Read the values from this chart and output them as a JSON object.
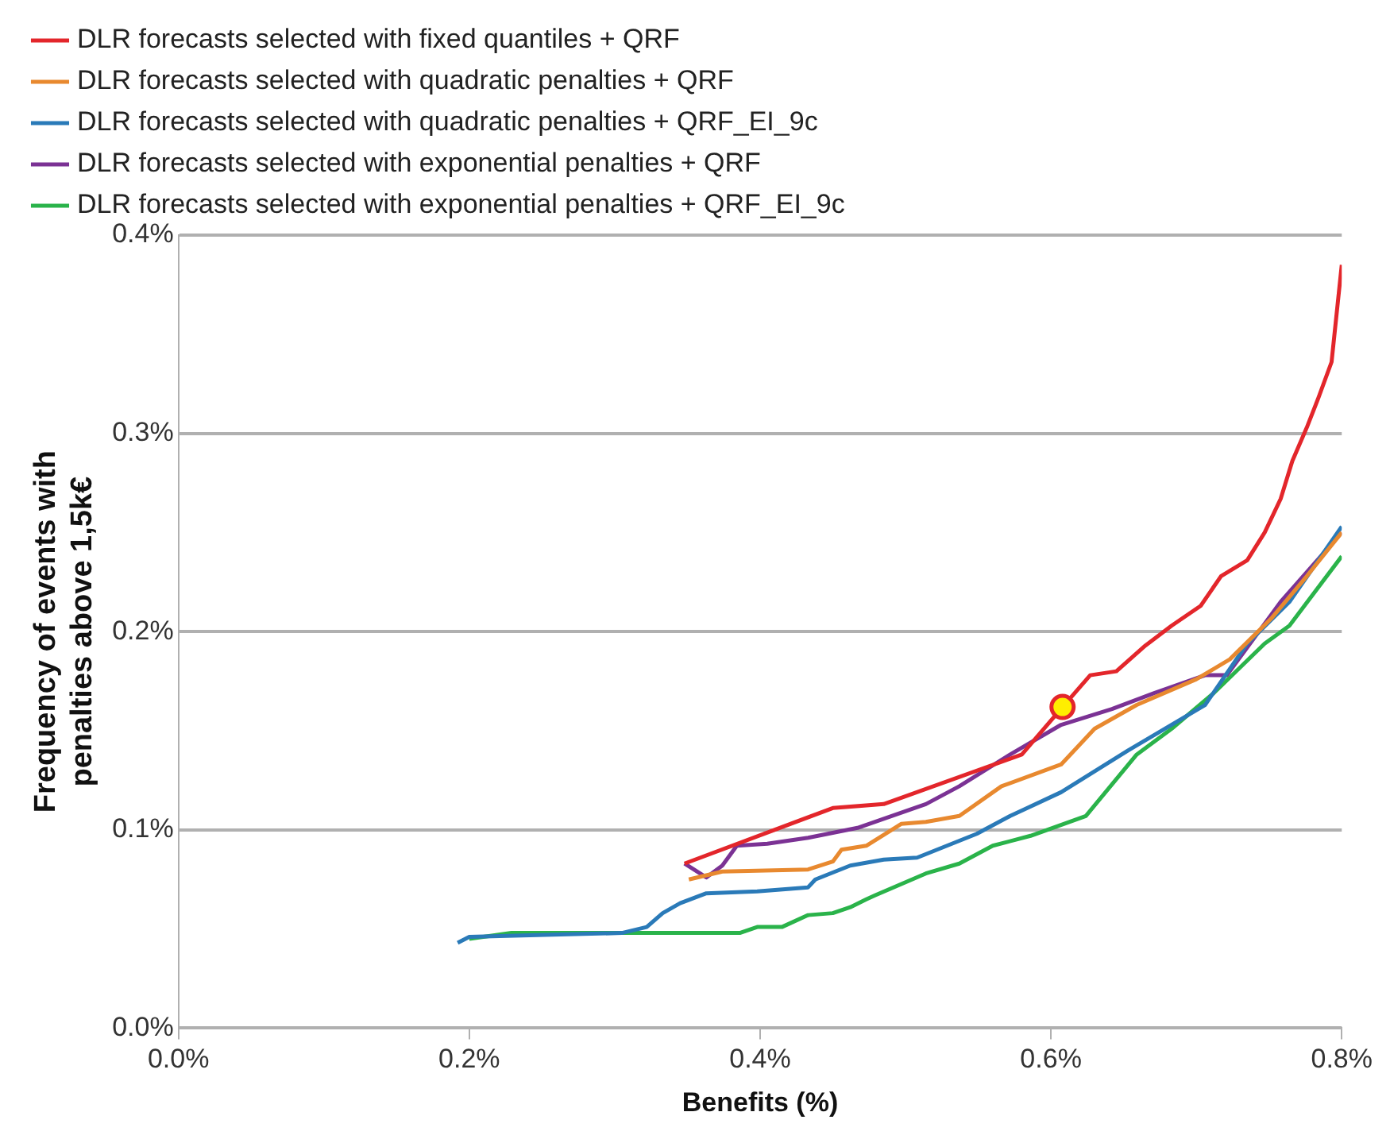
{
  "chart_data": {
    "type": "line",
    "xlabel": "Benefits (%)",
    "ylabel": "Frequency of events with penalties above 1,5k€",
    "xlim": [
      0,
      0.8
    ],
    "ylim": [
      0,
      0.4
    ],
    "xticks": [
      {
        "value": 0,
        "label": "0.0%"
      },
      {
        "value": 0.2,
        "label": "0.2%"
      },
      {
        "value": 0.4,
        "label": "0.4%"
      },
      {
        "value": 0.6,
        "label": "0.6%"
      },
      {
        "value": 0.8,
        "label": "0.8%"
      }
    ],
    "yticks": [
      {
        "value": 0,
        "label": "0.0%"
      },
      {
        "value": 0.1,
        "label": "0.1%"
      },
      {
        "value": 0.2,
        "label": "0.2%"
      },
      {
        "value": 0.3,
        "label": "0.3%"
      },
      {
        "value": 0.4,
        "label": "0.4%"
      }
    ],
    "grid": "y",
    "legend": "top left",
    "marker": "none",
    "line_style": "solid",
    "series": [
      {
        "name": "DLR forecasts selected with fixed quantiles + QRF",
        "color": "#e3262b",
        "x": [
          0.348,
          0.45,
          0.485,
          0.58,
          0.608,
          0.627,
          0.645,
          0.665,
          0.683,
          0.703,
          0.717,
          0.735,
          0.747,
          0.758,
          0.766,
          0.776,
          0.784,
          0.793,
          0.8
        ],
        "values": [
          0.083,
          0.111,
          0.113,
          0.138,
          0.162,
          0.178,
          0.18,
          0.193,
          0.203,
          0.213,
          0.228,
          0.236,
          0.25,
          0.267,
          0.286,
          0.303,
          0.318,
          0.336,
          0.385
        ]
      },
      {
        "name": "DLR forecasts selected with quadratic penalties + QRF",
        "color": "#e8892f",
        "x": [
          0.351,
          0.374,
          0.433,
          0.45,
          0.456,
          0.473,
          0.497,
          0.514,
          0.537,
          0.566,
          0.607,
          0.63,
          0.659,
          0.7,
          0.723,
          0.752,
          0.776,
          0.8
        ],
        "values": [
          0.075,
          0.079,
          0.08,
          0.084,
          0.09,
          0.092,
          0.103,
          0.104,
          0.107,
          0.122,
          0.133,
          0.151,
          0.163,
          0.176,
          0.186,
          0.207,
          0.228,
          0.25
        ]
      },
      {
        "name": "DLR forecasts selected with quadratic penalties + QRF_EI_9c",
        "color": "#2a7ab8",
        "x": [
          0.192,
          0.2,
          0.252,
          0.305,
          0.322,
          0.333,
          0.345,
          0.363,
          0.398,
          0.433,
          0.438,
          0.462,
          0.485,
          0.508,
          0.549,
          0.572,
          0.607,
          0.653,
          0.706,
          0.735,
          0.764,
          0.8
        ],
        "values": [
          0.043,
          0.046,
          0.047,
          0.048,
          0.051,
          0.058,
          0.063,
          0.068,
          0.069,
          0.071,
          0.075,
          0.082,
          0.085,
          0.086,
          0.098,
          0.107,
          0.119,
          0.14,
          0.163,
          0.194,
          0.215,
          0.253
        ]
      },
      {
        "name": "DLR forecasts selected with exponential penalties + QRF",
        "color": "#7b3294",
        "x": [
          0.348,
          0.363,
          0.374,
          0.384,
          0.405,
          0.433,
          0.467,
          0.514,
          0.537,
          0.572,
          0.607,
          0.642,
          0.671,
          0.706,
          0.721,
          0.758,
          0.8
        ],
        "values": [
          0.083,
          0.076,
          0.082,
          0.092,
          0.093,
          0.096,
          0.101,
          0.113,
          0.122,
          0.138,
          0.153,
          0.161,
          0.169,
          0.178,
          0.178,
          0.215,
          0.25
        ]
      },
      {
        "name": "DLR forecasts selected with exponential penalties + QRF_EI_9c",
        "color": "#2ab34a",
        "x": [
          0.2,
          0.229,
          0.386,
          0.398,
          0.415,
          0.433,
          0.45,
          0.462,
          0.473,
          0.479,
          0.514,
          0.537,
          0.56,
          0.586,
          0.624,
          0.659,
          0.683,
          0.712,
          0.747,
          0.764,
          0.8
        ],
        "values": [
          0.045,
          0.048,
          0.048,
          0.051,
          0.051,
          0.057,
          0.058,
          0.061,
          0.065,
          0.067,
          0.078,
          0.083,
          0.092,
          0.097,
          0.107,
          0.138,
          0.151,
          0.169,
          0.194,
          0.203,
          0.238
        ]
      },
      {
        "type": "scatter",
        "marker": "circle",
        "color": "#ffee00",
        "x": [
          0.608
        ],
        "values": [
          0.162
        ]
      }
    ]
  }
}
